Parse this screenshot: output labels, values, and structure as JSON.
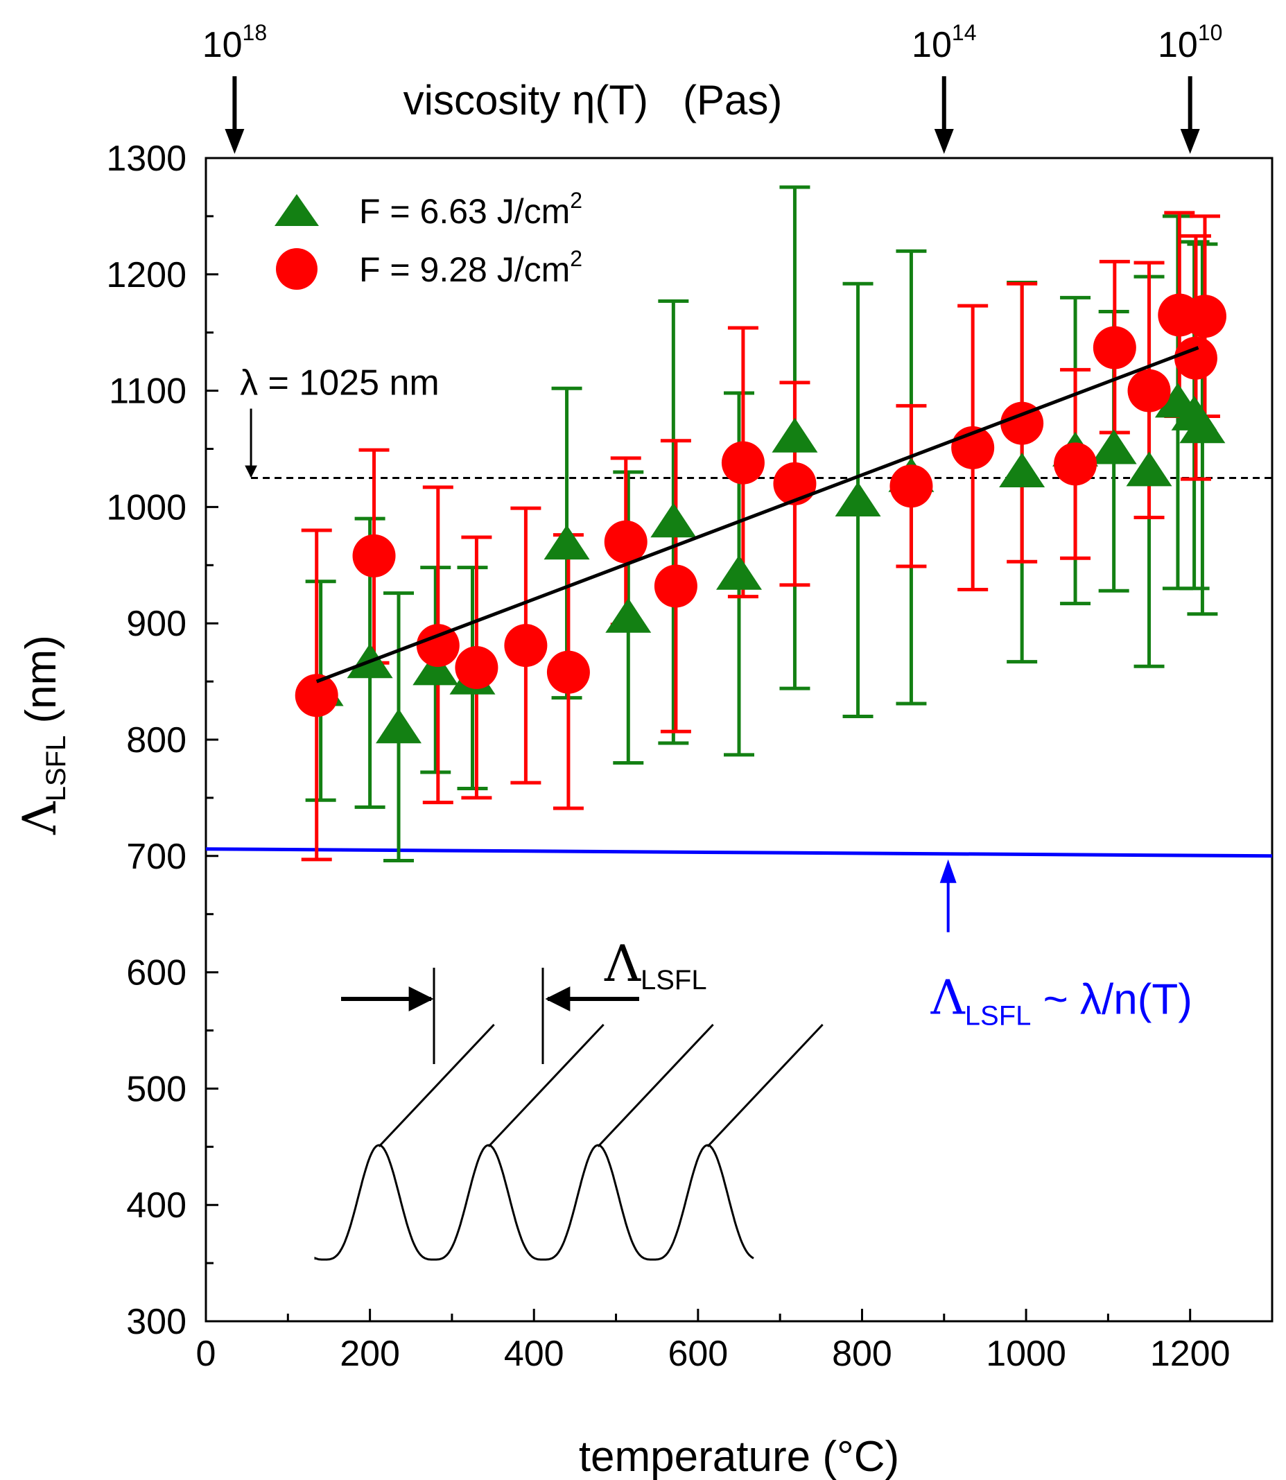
{
  "chart_data": {
    "type": "scatter",
    "xlabel": "temperature (°C)",
    "ylabel": {
      "symbol": "Λ",
      "subscript": "LSFL",
      "unit": " (nm)"
    },
    "xlim": [
      0,
      1300
    ],
    "ylim": [
      300,
      1300
    ],
    "x_ticks": [
      0,
      200,
      400,
      600,
      800,
      1000,
      1200
    ],
    "y_ticks": [
      300,
      400,
      500,
      600,
      700,
      800,
      900,
      1000,
      1100,
      1200,
      1300
    ],
    "x_tick_labels": [
      "0",
      "200",
      "400",
      "600",
      "800",
      "1000",
      "1200"
    ],
    "y_tick_labels": [
      "300",
      "400",
      "500",
      "600",
      "700",
      "800",
      "900",
      "1000",
      "1100",
      "1200",
      "1300"
    ],
    "top_axis": {
      "title": "viscosity η(T)   (Pas)",
      "markers": [
        {
          "x": 35,
          "base": "10",
          "exp": "18"
        },
        {
          "x": 900,
          "base": "10",
          "exp": "14"
        },
        {
          "x": 1200,
          "base": "10",
          "exp": "10"
        }
      ]
    },
    "series": [
      {
        "name": "F = 6.63 J/cm",
        "name_sup": "2",
        "color": "#138013",
        "marker": "triangle",
        "points": [
          {
            "x": 140,
            "y": 842,
            "ylo": 748,
            "yhi": 936
          },
          {
            "x": 200,
            "y": 866,
            "ylo": 742,
            "yhi": 990
          },
          {
            "x": 235,
            "y": 810,
            "ylo": 696,
            "yhi": 926
          },
          {
            "x": 280,
            "y": 860,
            "ylo": 772,
            "yhi": 948
          },
          {
            "x": 325,
            "y": 852,
            "ylo": 758,
            "yhi": 948
          },
          {
            "x": 440,
            "y": 968,
            "ylo": 836,
            "yhi": 1102
          },
          {
            "x": 515,
            "y": 905,
            "ylo": 780,
            "yhi": 1030
          },
          {
            "x": 570,
            "y": 987,
            "ylo": 797,
            "yhi": 1177
          },
          {
            "x": 650,
            "y": 942,
            "ylo": 787,
            "yhi": 1098
          },
          {
            "x": 718,
            "y": 1060,
            "ylo": 844,
            "yhi": 1275
          },
          {
            "x": 795,
            "y": 1005,
            "ylo": 820,
            "yhi": 1192
          },
          {
            "x": 860,
            "y": 1026,
            "ylo": 831,
            "yhi": 1220
          },
          {
            "x": 995,
            "y": 1030,
            "ylo": 867,
            "yhi": 1193
          },
          {
            "x": 1060,
            "y": 1048,
            "ylo": 917,
            "yhi": 1180
          },
          {
            "x": 1107,
            "y": 1050,
            "ylo": 928,
            "yhi": 1168
          },
          {
            "x": 1150,
            "y": 1031,
            "ylo": 863,
            "yhi": 1198
          },
          {
            "x": 1185,
            "y": 1090,
            "ylo": 930,
            "yhi": 1250
          },
          {
            "x": 1205,
            "y": 1079,
            "ylo": 930,
            "yhi": 1228
          },
          {
            "x": 1215,
            "y": 1068,
            "ylo": 908,
            "yhi": 1226
          }
        ]
      },
      {
        "name": "F = 9.28 J/cm",
        "name_sup": "2",
        "color": "#ff0000",
        "marker": "circle",
        "points": [
          {
            "x": 135,
            "y": 838,
            "ylo": 697,
            "yhi": 980
          },
          {
            "x": 205,
            "y": 958,
            "ylo": 866,
            "yhi": 1049
          },
          {
            "x": 283,
            "y": 881,
            "ylo": 746,
            "yhi": 1017
          },
          {
            "x": 330,
            "y": 862,
            "ylo": 750,
            "yhi": 974
          },
          {
            "x": 390,
            "y": 881,
            "ylo": 763,
            "yhi": 999
          },
          {
            "x": 442,
            "y": 858,
            "ylo": 741,
            "yhi": 976
          },
          {
            "x": 512,
            "y": 970,
            "ylo": 899,
            "yhi": 1042
          },
          {
            "x": 573,
            "y": 932,
            "ylo": 807,
            "yhi": 1057
          },
          {
            "x": 655,
            "y": 1038,
            "ylo": 923,
            "yhi": 1154
          },
          {
            "x": 718,
            "y": 1020,
            "ylo": 933,
            "yhi": 1107
          },
          {
            "x": 860,
            "y": 1018,
            "ylo": 949,
            "yhi": 1087
          },
          {
            "x": 935,
            "y": 1051,
            "ylo": 929,
            "yhi": 1173
          },
          {
            "x": 995,
            "y": 1072,
            "ylo": 953,
            "yhi": 1192
          },
          {
            "x": 1060,
            "y": 1037,
            "ylo": 956,
            "yhi": 1118
          },
          {
            "x": 1108,
            "y": 1137,
            "ylo": 1064,
            "yhi": 1211
          },
          {
            "x": 1150,
            "y": 1100,
            "ylo": 991,
            "yhi": 1210
          },
          {
            "x": 1187,
            "y": 1165,
            "ylo": 1078,
            "yhi": 1253
          },
          {
            "x": 1207,
            "y": 1128,
            "ylo": 1024,
            "yhi": 1233
          },
          {
            "x": 1218,
            "y": 1164,
            "ylo": 1078,
            "yhi": 1250
          }
        ]
      }
    ],
    "fit_line": {
      "color": "#000000",
      "x": [
        135,
        1210
      ],
      "y": [
        850,
        1137
      ]
    },
    "reference_line": {
      "color": "#000000",
      "style": "dashed",
      "y": 1025,
      "label": "λ = 1025 nm",
      "arrow_x": 55
    },
    "theory_line": {
      "color": "#0000ff",
      "x": [
        0,
        1300
      ],
      "y": [
        706,
        700
      ],
      "label_symbol": "Λ",
      "label_subscript": "LSFL",
      "label_rest": " ~ λ/n(T)",
      "arrow_x": 905
    },
    "inset": {
      "description_label_symbol": "Λ",
      "description_label_subscript": "LSFL",
      "periods": 4
    },
    "legend_position": "top-left"
  }
}
